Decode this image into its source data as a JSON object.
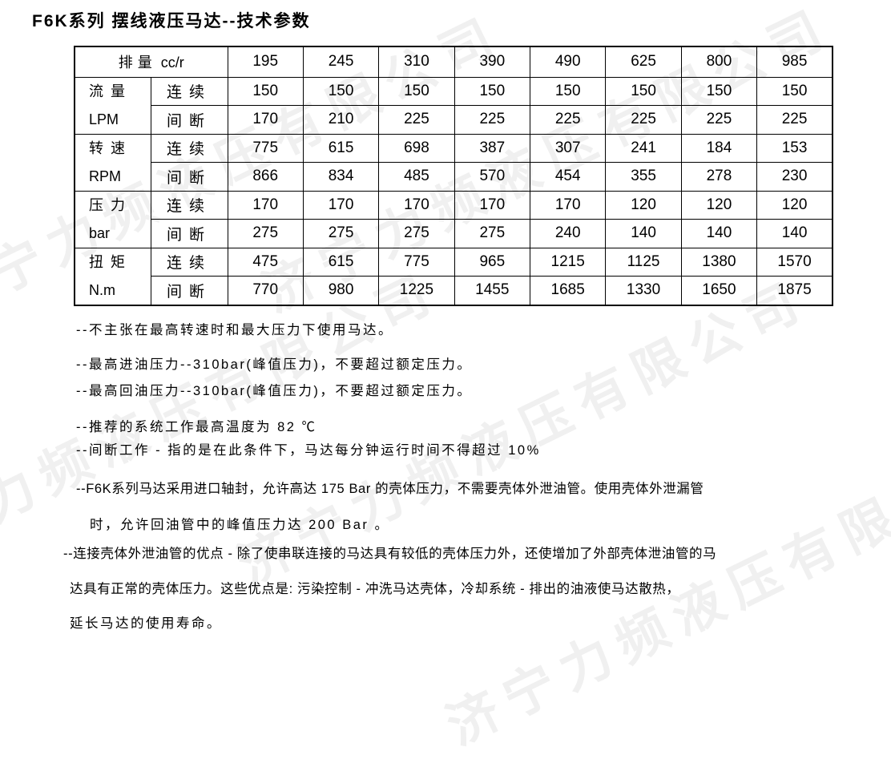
{
  "page": {
    "title": "F6K系列 摆线液压马达--技术参数"
  },
  "watermark": {
    "text": "济宁力频液压有限公司",
    "color": "#f0f0f0"
  },
  "table": {
    "header": {
      "row_label": "排量",
      "row_label_unit": "cc/r",
      "displacements": [
        "195",
        "245",
        "310",
        "390",
        "490",
        "625",
        "800",
        "985"
      ]
    },
    "groups": [
      {
        "name": "流量",
        "unit": "LPM",
        "rows": [
          {
            "mode": "连续",
            "values": [
              "150",
              "150",
              "150",
              "150",
              "150",
              "150",
              "150",
              "150"
            ]
          },
          {
            "mode": "间断",
            "values": [
              "170",
              "210",
              "225",
              "225",
              "225",
              "225",
              "225",
              "225"
            ]
          }
        ]
      },
      {
        "name": "转速",
        "unit": "RPM",
        "rows": [
          {
            "mode": "连续",
            "values": [
              "775",
              "615",
              "698",
              "387",
              "307",
              "241",
              "184",
              "153"
            ]
          },
          {
            "mode": "间断",
            "values": [
              "866",
              "834",
              "485",
              "570",
              "454",
              "355",
              "278",
              "230"
            ]
          }
        ]
      },
      {
        "name": "压力",
        "unit": "bar",
        "rows": [
          {
            "mode": "连续",
            "values": [
              "170",
              "170",
              "170",
              "170",
              "170",
              "120",
              "120",
              "120"
            ]
          },
          {
            "mode": "间断",
            "values": [
              "275",
              "275",
              "275",
              "275",
              "240",
              "140",
              "140",
              "140"
            ]
          }
        ]
      },
      {
        "name": "扭矩",
        "unit": "N.m",
        "rows": [
          {
            "mode": "连续",
            "values": [
              "475",
              "615",
              "775",
              "965",
              "1215",
              "1125",
              "1380",
              "1570"
            ]
          },
          {
            "mode": "间断",
            "values": [
              "770",
              "980",
              "1225",
              "1455",
              "1685",
              "1330",
              "1650",
              "1875"
            ]
          }
        ]
      }
    ]
  },
  "notes": [
    "--不主张在最高转速时和最大压力下使用马达。",
    "--最高进油压力--310bar(峰值压力)，不要超过额定压力。",
    "--最高回油压力--310bar(峰值压力)，不要超过额定压力。",
    "--推荐的系统工作最高温度为 82 ℃",
    "--间断工作 - 指的是在此条件下，马达每分钟运行时间不得超过 10%",
    "--F6K系列马达采用进口轴封，允许高达 175 Bar 的壳体压力，不需要壳体外泄油管。使用壳体外泄漏管",
    "时，允许回油管中的峰值压力达 200 Bar 。",
    "--连接壳体外泄油管的优点 - 除了使串联连接的马达具有较低的壳体压力外，还使增加了外部壳体泄油管的马",
    "达具有正常的壳体压力。这些优点是: 污染控制 - 冲洗马达壳体，冷却系统 - 排出的油液使马达散热，",
    "延长马达的使用寿命。"
  ]
}
